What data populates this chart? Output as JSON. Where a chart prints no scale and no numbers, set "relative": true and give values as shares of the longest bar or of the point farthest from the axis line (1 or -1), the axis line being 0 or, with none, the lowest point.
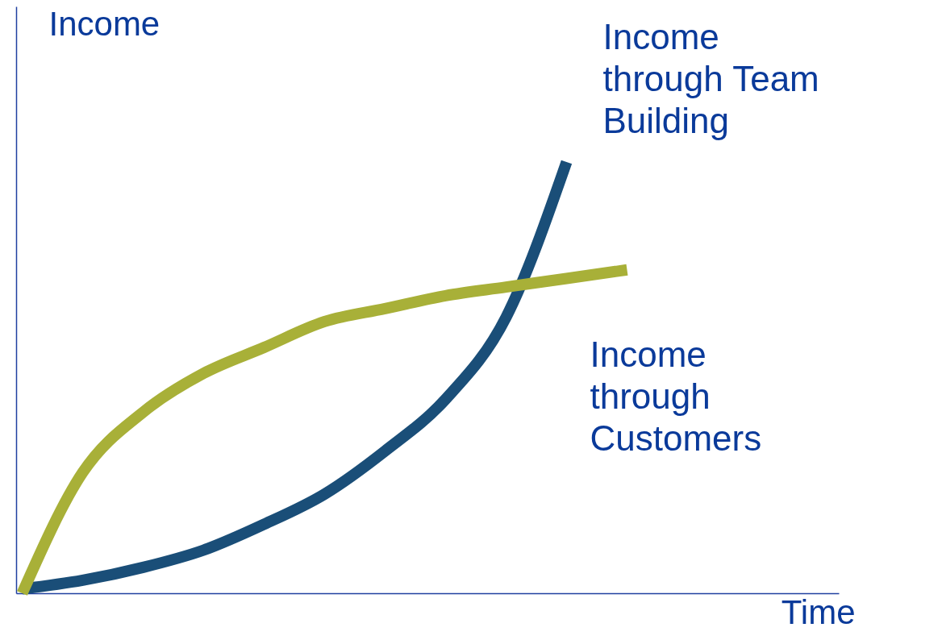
{
  "chart_data": {
    "type": "line",
    "relative": true,
    "xlabel": "Time",
    "ylabel": "Income",
    "categories": [
      null,
      null,
      null,
      null,
      null,
      null,
      null,
      null,
      null,
      null,
      null
    ],
    "series": [
      {
        "name": "Income through Team Building",
        "color": "#1a4e78",
        "values": [
          0.01,
          0.03,
          0.06,
          0.1,
          0.16,
          0.23,
          0.33,
          0.45,
          0.64,
          1.0,
          null
        ]
      },
      {
        "name": "Income through Customers",
        "color": "#a8b038",
        "values": [
          0,
          0.28,
          0.42,
          0.51,
          0.57,
          0.63,
          0.66,
          0.69,
          0.71,
          0.73,
          0.75
        ]
      }
    ],
    "marker": "none",
    "line_style": "solid",
    "grid": false,
    "tick_labels": false
  }
}
